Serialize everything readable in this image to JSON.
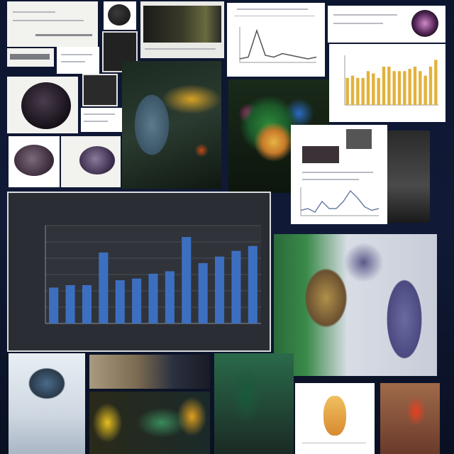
{
  "chart_data": [
    {
      "type": "bar",
      "title": "",
      "xlabel": "",
      "ylabel": "",
      "ylim": [
        0,
        60
      ],
      "grid": true,
      "color": "#3d6fc0",
      "categories": [
        "",
        "",
        "",
        "",
        "",
        "",
        "",
        "",
        "",
        "",
        "",
        "",
        ""
      ],
      "values": [
        22,
        23.5,
        23.5,
        43.5,
        26.5,
        27.5,
        30.5,
        32,
        53,
        37,
        41,
        44.5,
        47.5
      ]
    },
    {
      "type": "bar",
      "title": "",
      "color": "#e3b23c",
      "categories": [
        "",
        "",
        "",
        "",
        "",
        "",
        "",
        "",
        "",
        "",
        "",
        "",
        "",
        "",
        "",
        "",
        "",
        ""
      ],
      "values": [
        12,
        13,
        12,
        12,
        15,
        14,
        12,
        17,
        17,
        15,
        15,
        15,
        16,
        17,
        15,
        13,
        17,
        20
      ]
    },
    {
      "type": "line",
      "title": "",
      "color": "#6b7fa3",
      "x": [
        1,
        2,
        3,
        4,
        5,
        6,
        7,
        8,
        9,
        10,
        11,
        12
      ],
      "values": [
        3,
        4,
        2,
        8,
        4,
        4,
        8,
        14,
        10,
        5,
        3,
        4
      ]
    },
    {
      "type": "line",
      "title": "",
      "color": "#555555",
      "x": [
        1,
        2,
        3,
        4,
        5,
        6,
        7,
        8,
        9,
        10
      ],
      "values": [
        2,
        3,
        18,
        4,
        3,
        5,
        4,
        3,
        2,
        3
      ]
    }
  ]
}
